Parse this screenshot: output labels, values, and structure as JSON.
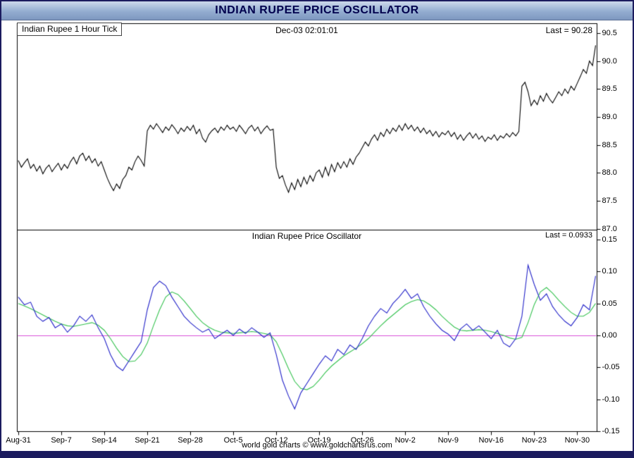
{
  "window": {
    "title": "INDIAN RUPEE PRICE OSCILLATOR"
  },
  "footer": {
    "credit": "world gold charts © www.goldchartsrus.com"
  },
  "colors": {
    "frame": "#1b1b5e",
    "titlebar_text": "#00004d",
    "panel_border": "#000000",
    "price_line": "#000000",
    "oscillator_line": "#2323c8",
    "signal_line": "#35c24f",
    "zero_line": "#d94fd9"
  },
  "chart_data": {
    "type": "line",
    "x_axis": {
      "unit": "date",
      "day_span": [
        0,
        94
      ],
      "tick_days": [
        0,
        7,
        14,
        21,
        28,
        35,
        42,
        49,
        56,
        63,
        70,
        77,
        84,
        91
      ],
      "tick_labels": [
        "Aug-31",
        "Sep-7",
        "Sep-14",
        "Sep-21",
        "Sep-28",
        "Oct-5",
        "Oct-12",
        "Oct-19",
        "Oct-26",
        "Nov-2",
        "Nov-9",
        "Nov-16",
        "Nov-23",
        "Nov-30"
      ]
    },
    "panels": [
      {
        "name": "price",
        "label": "Indian Rupee 1 Hour Tick",
        "timestamp": "Dec-03  02:01:01",
        "last_label": "Last = 90.28",
        "last": 90.28,
        "ylim": [
          87.0,
          90.5
        ],
        "y_ticks": [
          90.5,
          90.0,
          89.5,
          89.0,
          88.5,
          88.0,
          87.5,
          87.0
        ],
        "y_tick_labels": [
          "90.5",
          "90.0",
          "89.5",
          "89.0",
          "88.5",
          "88.0",
          "87.5",
          "87.0"
        ],
        "series": [
          {
            "name": "indian-rupee-price",
            "color_key": "price_line",
            "x_start": 0,
            "x_step": 0.5,
            "values": [
              88.22,
              88.1,
              88.18,
              88.25,
              88.08,
              88.15,
              88.03,
              88.12,
              87.98,
              88.08,
              88.14,
              88.02,
              88.1,
              88.17,
              88.05,
              88.15,
              88.08,
              88.2,
              88.28,
              88.16,
              88.3,
              88.35,
              88.22,
              88.3,
              88.18,
              88.25,
              88.12,
              88.2,
              88.05,
              87.9,
              87.78,
              87.68,
              87.8,
              87.72,
              87.88,
              87.95,
              88.1,
              88.05,
              88.2,
              88.3,
              88.22,
              88.12,
              88.75,
              88.85,
              88.78,
              88.88,
              88.8,
              88.72,
              88.82,
              88.76,
              88.86,
              88.79,
              88.7,
              88.8,
              88.74,
              88.83,
              88.76,
              88.85,
              88.7,
              88.78,
              88.62,
              88.55,
              88.68,
              88.75,
              88.8,
              88.72,
              88.82,
              88.76,
              88.85,
              88.78,
              88.82,
              88.74,
              88.85,
              88.78,
              88.7,
              88.8,
              88.85,
              88.75,
              88.82,
              88.7,
              88.78,
              88.84,
              88.76,
              88.78,
              88.1,
              87.9,
              87.95,
              87.78,
              87.65,
              87.82,
              87.7,
              87.88,
              87.75,
              87.92,
              87.8,
              87.95,
              87.85,
              88.0,
              88.05,
              87.92,
              88.1,
              87.95,
              88.15,
              88.02,
              88.18,
              88.08,
              88.2,
              88.1,
              88.25,
              88.15,
              88.28,
              88.35,
              88.45,
              88.55,
              88.48,
              88.6,
              88.68,
              88.58,
              88.72,
              88.65,
              88.78,
              88.7,
              88.8,
              88.74,
              88.85,
              88.76,
              88.88,
              88.78,
              88.85,
              88.75,
              88.82,
              88.72,
              88.8,
              88.7,
              88.76,
              88.66,
              88.74,
              88.64,
              88.72,
              88.68,
              88.75,
              88.65,
              88.72,
              88.6,
              88.68,
              88.58,
              88.66,
              88.72,
              88.62,
              88.7,
              88.6,
              88.66,
              88.56,
              88.64,
              88.6,
              88.68,
              88.58,
              88.66,
              88.62,
              88.7,
              88.64,
              88.72,
              88.66,
              88.74,
              89.55,
              89.62,
              89.45,
              89.2,
              89.3,
              89.22,
              89.38,
              89.28,
              89.42,
              89.32,
              89.25,
              89.35,
              89.45,
              89.38,
              89.5,
              89.42,
              89.55,
              89.48,
              89.6,
              89.72,
              89.85,
              89.78,
              90.0,
              89.92,
              90.28
            ]
          }
        ]
      },
      {
        "name": "oscillator",
        "title": "Indian Rupee Price Oscillator",
        "last_label": "Last = 0.0933",
        "last": 0.0933,
        "ylim": [
          -0.15,
          0.15
        ],
        "y_ticks": [
          0.15,
          0.1,
          0.05,
          0.0,
          -0.05,
          -0.1,
          -0.15
        ],
        "y_tick_labels": [
          "0.15",
          "0.10",
          "0.05",
          "0.00",
          "-0.05",
          "-0.10",
          "-0.15"
        ],
        "zero_line": 0,
        "series": [
          {
            "name": "price-oscillator",
            "color_key": "oscillator_line",
            "x_start": 0,
            "x_step": 1,
            "values": [
              0.06,
              0.048,
              0.052,
              0.03,
              0.022,
              0.028,
              0.012,
              0.018,
              0.005,
              0.015,
              0.03,
              0.022,
              0.032,
              0.012,
              -0.005,
              -0.03,
              -0.048,
              -0.055,
              -0.04,
              -0.025,
              -0.01,
              0.04,
              0.075,
              0.085,
              0.078,
              0.06,
              0.045,
              0.03,
              0.02,
              0.012,
              0.005,
              0.01,
              -0.005,
              0.002,
              0.008,
              0.0,
              0.01,
              0.003,
              0.012,
              0.005,
              -0.003,
              0.004,
              -0.03,
              -0.07,
              -0.095,
              -0.115,
              -0.09,
              -0.075,
              -0.06,
              -0.045,
              -0.032,
              -0.04,
              -0.022,
              -0.03,
              -0.015,
              -0.022,
              -0.005,
              0.015,
              0.03,
              0.042,
              0.035,
              0.05,
              0.06,
              0.072,
              0.058,
              0.065,
              0.045,
              0.03,
              0.018,
              0.008,
              0.002,
              -0.008,
              0.01,
              0.018,
              0.008,
              0.015,
              0.005,
              -0.005,
              0.008,
              -0.012,
              -0.018,
              -0.005,
              0.03,
              0.11,
              0.08,
              0.055,
              0.065,
              0.045,
              0.032,
              0.022,
              0.015,
              0.028,
              0.048,
              0.04,
              0.093
            ]
          },
          {
            "name": "oscillator-signal",
            "color_key": "signal_line",
            "x_start": 0,
            "x_step": 1,
            "values": [
              0.05,
              0.046,
              0.042,
              0.037,
              0.032,
              0.027,
              0.022,
              0.018,
              0.015,
              0.014,
              0.016,
              0.018,
              0.02,
              0.016,
              0.008,
              -0.005,
              -0.02,
              -0.033,
              -0.041,
              -0.04,
              -0.03,
              -0.012,
              0.015,
              0.04,
              0.06,
              0.068,
              0.064,
              0.054,
              0.042,
              0.03,
              0.02,
              0.013,
              0.008,
              0.005,
              0.004,
              0.003,
              0.004,
              0.005,
              0.006,
              0.005,
              0.003,
              0.001,
              -0.01,
              -0.03,
              -0.052,
              -0.072,
              -0.083,
              -0.085,
              -0.08,
              -0.07,
              -0.058,
              -0.048,
              -0.04,
              -0.032,
              -0.026,
              -0.02,
              -0.013,
              -0.005,
              0.005,
              0.015,
              0.024,
              0.032,
              0.04,
              0.048,
              0.053,
              0.056,
              0.054,
              0.048,
              0.04,
              0.03,
              0.021,
              0.013,
              0.008,
              0.007,
              0.008,
              0.009,
              0.008,
              0.006,
              0.003,
              0.0,
              -0.004,
              -0.006,
              -0.003,
              0.02,
              0.048,
              0.068,
              0.075,
              0.066,
              0.055,
              0.045,
              0.036,
              0.03,
              0.03,
              0.036,
              0.05
            ]
          }
        ]
      }
    ]
  }
}
